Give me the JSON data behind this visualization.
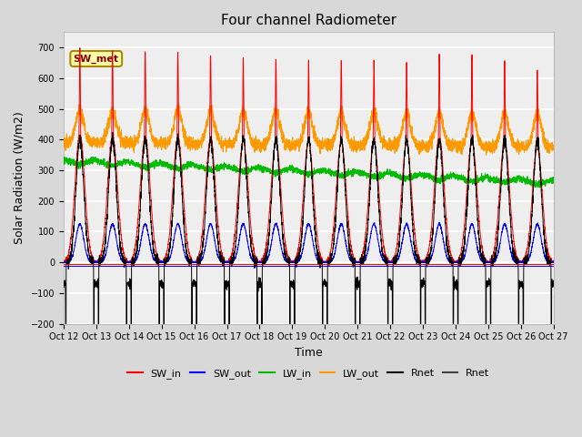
{
  "title": "Four channel Radiometer",
  "xlabel": "Time",
  "ylabel": "Solar Radiation (W/m2)",
  "ylim": [
    -200,
    750
  ],
  "yticks": [
    -200,
    -100,
    0,
    100,
    200,
    300,
    400,
    500,
    600,
    700
  ],
  "xtick_labels": [
    "Oct 12",
    "Oct 13",
    "Oct 14",
    "Oct 15",
    "Oct 16",
    "Oct 17",
    "Oct 18",
    "Oct 19",
    "Oct 20",
    "Oct 21",
    "Oct 22",
    "Oct 23",
    "Oct 24",
    "Oct 25",
    "Oct 26",
    "Oct 27"
  ],
  "sw_met_label": "SW_met",
  "colors": {
    "SW_in": "#ff0000",
    "SW_out": "#0000ff",
    "LW_in": "#00bb00",
    "LW_out": "#ff9900",
    "Rnet": "#000000",
    "Rnet2": "#444444"
  },
  "legend_labels": [
    "SW_in",
    "SW_out",
    "LW_in",
    "LW_out",
    "Rnet",
    "Rnet"
  ],
  "fig_bg": "#d8d8d8",
  "ax_bg": "#eeeeee",
  "n_days": 15,
  "pts_per_day": 288
}
